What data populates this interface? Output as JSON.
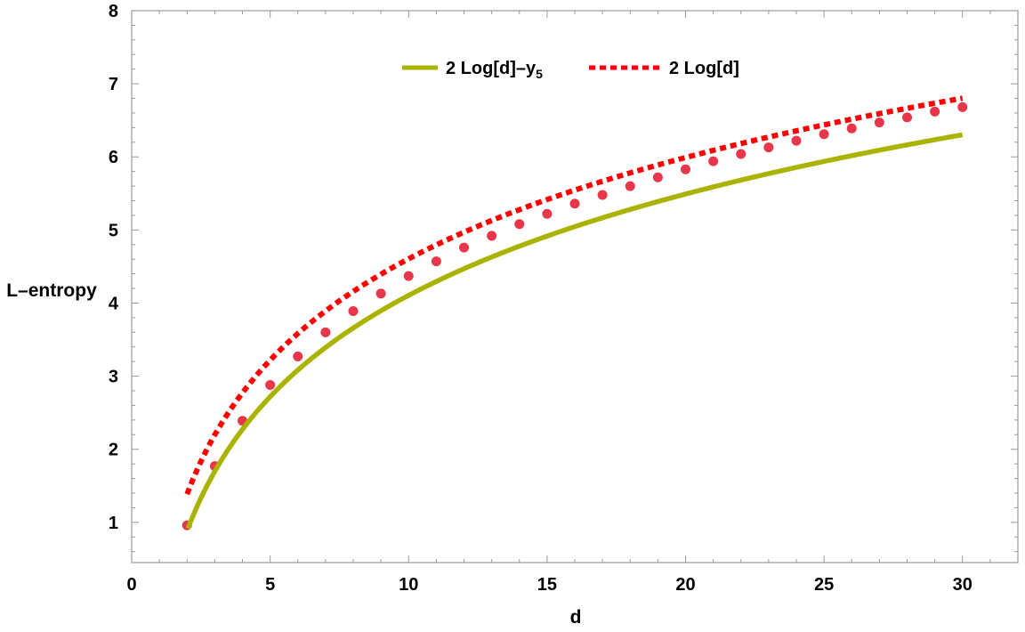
{
  "chart_data": {
    "type": "line",
    "xlabel": "d",
    "ylabel": "L–entropy",
    "xlim": [
      0,
      32
    ],
    "ylim": [
      0.45,
      8
    ],
    "x_ticks": [
      0,
      5,
      10,
      15,
      20,
      25,
      30
    ],
    "y_ticks": [
      1,
      2,
      3,
      4,
      5,
      6,
      7,
      8
    ],
    "x_tick_labels": [
      "0",
      "5",
      "10",
      "15",
      "20",
      "25",
      "30"
    ],
    "y_tick_labels": [
      "1",
      "2",
      "3",
      "4",
      "5",
      "6",
      "7",
      "8"
    ],
    "legend": {
      "placement": "top-center"
    },
    "series": [
      {
        "name": "2 Log[d]–y",
        "name_subscript": "5",
        "style": "solid",
        "color": "#aab400",
        "function": "2 Log[d] - 0.5",
        "d_range": [
          2,
          30
        ]
      },
      {
        "name": "2 Log[d]",
        "style": "dotted",
        "color": "#ff0000",
        "function": "2 Log[d]",
        "d_range": [
          2,
          30
        ]
      },
      {
        "style": "markers",
        "color": "#e8364a",
        "x": [
          2,
          3,
          4,
          5,
          6,
          7,
          8,
          9,
          10,
          11,
          12,
          13,
          14,
          15,
          16,
          17,
          18,
          19,
          20,
          21,
          22,
          23,
          24,
          25,
          26,
          27,
          28,
          29,
          30
        ],
        "y": [
          0.96,
          1.77,
          2.39,
          2.88,
          3.27,
          3.6,
          3.89,
          4.13,
          4.37,
          4.57,
          4.76,
          4.92,
          5.08,
          5.22,
          5.36,
          5.48,
          5.6,
          5.72,
          5.83,
          5.94,
          6.04,
          6.13,
          6.22,
          6.31,
          6.39,
          6.47,
          6.54,
          6.62,
          6.68
        ]
      }
    ]
  }
}
